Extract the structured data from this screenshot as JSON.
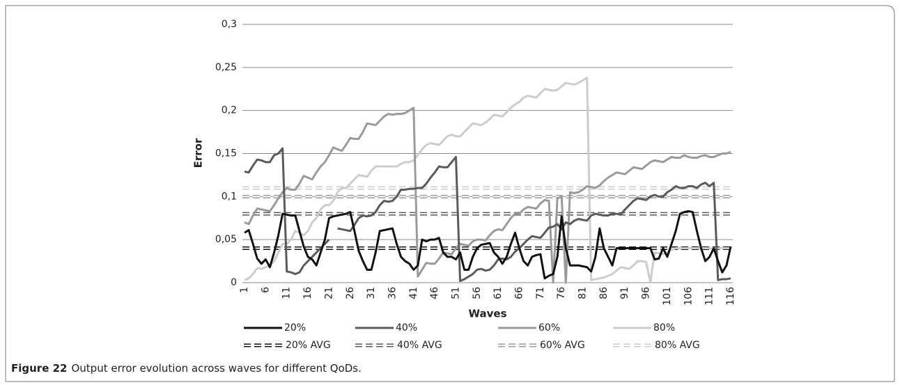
{
  "chart_data": {
    "type": "line",
    "x_label": "Waves",
    "y_label": "Error",
    "caption": {
      "label": "Figure 22",
      "text": "Output error evolution across waves for different QoDs."
    },
    "categories": [
      1,
      null,
      null,
      null,
      null,
      6,
      null,
      null,
      null,
      null,
      11,
      null,
      null,
      null,
      null,
      16,
      null,
      null,
      null,
      null,
      21,
      null,
      null,
      null,
      null,
      26,
      null,
      null,
      null,
      null,
      31,
      null,
      null,
      null,
      null,
      36,
      null,
      null,
      null,
      null,
      41,
      null,
      null,
      null,
      null,
      46,
      null,
      null,
      null,
      null,
      51,
      null,
      null,
      null,
      null,
      56,
      null,
      null,
      null,
      null,
      61,
      null,
      null,
      null,
      null,
      66,
      null,
      null,
      null,
      null,
      71,
      null,
      null,
      null,
      null,
      76,
      null,
      null,
      null,
      null,
      81,
      null,
      null,
      null,
      null,
      86,
      null,
      null,
      null,
      null,
      91,
      null,
      null,
      null,
      null,
      96,
      null,
      null,
      null,
      null,
      101,
      null,
      null,
      null,
      null,
      106,
      null,
      null,
      null,
      null,
      111,
      null,
      null,
      null,
      null,
      116
    ],
    "ylim": [
      0,
      0.3
    ],
    "yticks": [
      0,
      {
        "value": 0.05,
        "label": "0,05"
      },
      {
        "value": 0.1,
        "label": "0,1"
      },
      {
        "value": 0.15,
        "label": "0,15"
      },
      {
        "value": 0.2,
        "label": "0,2"
      },
      {
        "value": 0.25,
        "label": "0,25"
      },
      {
        "value": 0.3,
        "label": "0,3"
      }
    ],
    "grid": true,
    "series": [
      {
        "name": "20%",
        "color": "#111111",
        "values": [
          0.058,
          0.061,
          0.045,
          0.028,
          0.022,
          0.027,
          0.018,
          0.035,
          0.055,
          0.08,
          0.079,
          0.078,
          0.078,
          0.06,
          0.042,
          0.03,
          0.027,
          0.02,
          0.035,
          0.05,
          0.075,
          0.077,
          0.078,
          0.079,
          0.08,
          0.082,
          0.06,
          0.037,
          0.025,
          0.015,
          0.015,
          0.035,
          0.06,
          0.061,
          0.062,
          0.063,
          0.045,
          0.03,
          0.025,
          0.022,
          0.015,
          0.02,
          0.05,
          0.048,
          0.05,
          0.05,
          0.052,
          0.035,
          0.03,
          0.03,
          0.027,
          0.035,
          0.015,
          0.015,
          0.03,
          0.04,
          0.044,
          0.045,
          0.046,
          0.035,
          0.03,
          0.022,
          0.03,
          0.045,
          0.058,
          0.04,
          0.025,
          0.02,
          0.03,
          0.032,
          0.033,
          0.005,
          0.008,
          0.01,
          0.03,
          0.077,
          0.04,
          0.02,
          0.02,
          0.02,
          0.019,
          0.018,
          0.013,
          0.03,
          0.063,
          0.04,
          0.03,
          0.02,
          0.04,
          0.04,
          0.04,
          0.04,
          0.04,
          0.04,
          0.04,
          0.04,
          0.04,
          0.027,
          0.028,
          0.04,
          0.03,
          0.045,
          0.06,
          0.08,
          0.082,
          0.083,
          0.082,
          0.06,
          0.04,
          0.025,
          0.03,
          0.04,
          0.025,
          0.012,
          0.02,
          0.042
        ]
      },
      {
        "name": "40%",
        "color": "#5a5a5a",
        "values": [
          0.129,
          0.128,
          0.136,
          0.143,
          0.142,
          0.14,
          0.14,
          0.148,
          0.15,
          0.156,
          0.013,
          0.012,
          0.01,
          0.012,
          0.02,
          0.025,
          0.03,
          0.035,
          0.04,
          0.045,
          0.05,
          null,
          0.063,
          0.062,
          0.061,
          0.06,
          0.067,
          0.075,
          0.078,
          0.077,
          0.078,
          0.082,
          0.09,
          0.095,
          0.094,
          0.095,
          0.1,
          0.108,
          0.108,
          0.109,
          0.109,
          0.11,
          0.11,
          0.115,
          0.122,
          0.128,
          0.135,
          0.134,
          0.134,
          0.14,
          0.146,
          0.002,
          0.004,
          0.007,
          0.01,
          0.015,
          0.016,
          0.014,
          0.015,
          0.02,
          0.027,
          0.028,
          0.027,
          0.03,
          0.036,
          0.04,
          0.045,
          0.05,
          0.054,
          0.053,
          0.052,
          0.058,
          0.064,
          0.065,
          0.068,
          0.062,
          0.07,
          0.068,
          0.072,
          0.074,
          0.073,
          0.072,
          0.078,
          0.08,
          0.079,
          0.078,
          0.078,
          0.08,
          0.08,
          0.079,
          0.085,
          0.09,
          0.095,
          0.098,
          0.097,
          0.096,
          0.1,
          0.102,
          0.1,
          0.1,
          0.105,
          0.108,
          0.112,
          0.11,
          0.11,
          0.112,
          0.112,
          0.11,
          0.114,
          0.116,
          0.112,
          0.116,
          0.003,
          0.004,
          0.004,
          0.005
        ]
      },
      {
        "name": "60%",
        "color": "#9a9a9a",
        "values": [
          0.07,
          0.068,
          0.078,
          0.086,
          0.085,
          0.084,
          0.083,
          0.09,
          0.098,
          0.105,
          0.11,
          0.108,
          0.108,
          0.115,
          0.124,
          0.122,
          0.12,
          0.128,
          0.135,
          0.14,
          0.148,
          0.157,
          0.155,
          0.153,
          0.16,
          0.168,
          0.167,
          0.167,
          0.175,
          0.185,
          0.184,
          0.183,
          0.188,
          0.193,
          0.196,
          0.195,
          0.196,
          0.196,
          0.197,
          0.2,
          0.203,
          0.007,
          0.015,
          0.023,
          0.022,
          0.022,
          0.028,
          0.035,
          0.034,
          0.033,
          0.04,
          0.045,
          0.044,
          0.043,
          0.048,
          0.05,
          0.05,
          0.049,
          0.055,
          0.06,
          0.062,
          0.061,
          0.068,
          0.075,
          0.08,
          0.08,
          0.085,
          0.088,
          0.087,
          0.086,
          0.092,
          0.096,
          0.095,
          0,
          0.098,
          0.1,
          0,
          0.105,
          0.104,
          0.105,
          0.108,
          0.112,
          0.111,
          0.11,
          0.113,
          0.118,
          0.122,
          0.125,
          0.128,
          0.127,
          0.126,
          0.13,
          0.134,
          0.133,
          0.132,
          0.136,
          0.14,
          0.142,
          0.141,
          0.14,
          0.143,
          0.146,
          0.145,
          0.145,
          0.148,
          0.146,
          0.145,
          0.145,
          0.147,
          0.148,
          0.146,
          0.146,
          0.148,
          0.15,
          0.15,
          0.152
        ]
      },
      {
        "name": "80%",
        "color": "#cccccc",
        "values": [
          0.003,
          0.005,
          0.01,
          0.017,
          0.016,
          0.018,
          0.02,
          0.025,
          0.035,
          0.045,
          0.045,
          0.05,
          0.06,
          0.058,
          0.055,
          0.06,
          0.07,
          0.075,
          0.085,
          0.09,
          0.09,
          0.095,
          0.105,
          0.11,
          0.11,
          0.115,
          0.12,
          0.125,
          0.124,
          0.123,
          0.13,
          0.135,
          0.135,
          0.135,
          0.135,
          0.135,
          0.135,
          0.138,
          0.14,
          0.14,
          0.142,
          0.148,
          0.155,
          0.16,
          0.162,
          0.161,
          0.16,
          0.165,
          0.17,
          0.172,
          0.17,
          0.17,
          0.175,
          0.18,
          0.185,
          0.184,
          0.183,
          0.186,
          0.19,
          0.195,
          0.194,
          0.193,
          0.198,
          0.203,
          0.207,
          0.21,
          0.215,
          0.217,
          0.216,
          0.215,
          0.22,
          0.225,
          0.224,
          0.223,
          0.224,
          0.228,
          0.232,
          0.231,
          0.23,
          0.232,
          0.235,
          0.238,
          0.003,
          0.004,
          0.005,
          0.006,
          0.008,
          0.01,
          0.014,
          0.018,
          0.017,
          0.016,
          0.02,
          0.025,
          0.025,
          0.024,
          0,
          0.035,
          0.034,
          0.033,
          0.035,
          0.038,
          0.04,
          0.04,
          0.04,
          0.04,
          0.04,
          0.04,
          0.04,
          0.04,
          0.04,
          0.04,
          0.04,
          0.04,
          0.04,
          0.04
        ]
      }
    ],
    "reference_lines": [
      {
        "name": "20% AVG",
        "color": "#111111",
        "value": 0.04
      },
      {
        "name": "40% AVG",
        "color": "#5a5a5a",
        "value": 0.08
      },
      {
        "name": "60% AVG",
        "color": "#9a9a9a",
        "value": 0.1
      },
      {
        "name": "80% AVG",
        "color": "#cccccc",
        "value": 0.11
      }
    ]
  }
}
